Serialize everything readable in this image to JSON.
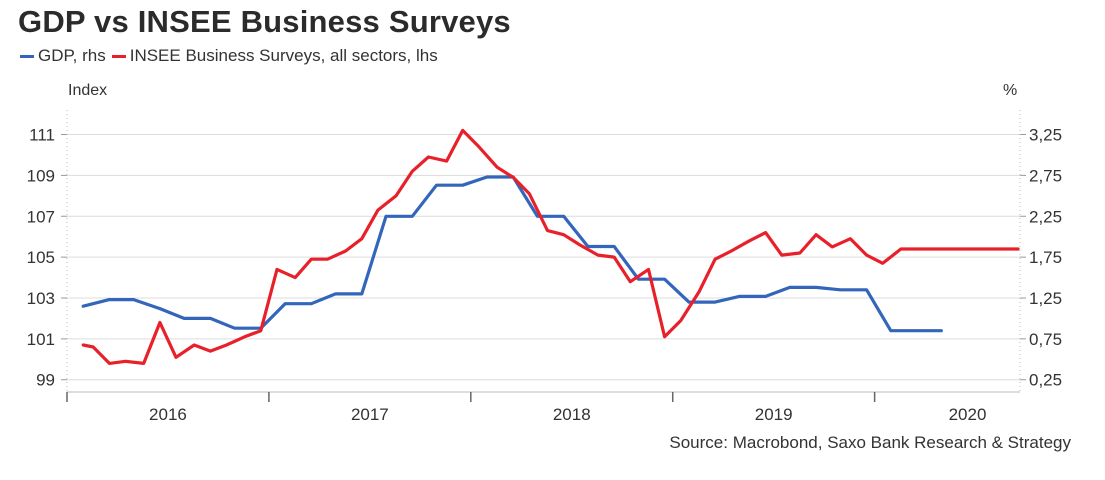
{
  "title": "GDP vs INSEE Business Surveys",
  "legend": [
    {
      "label": "GDP, rhs",
      "color": "#3366bb"
    },
    {
      "label": "INSEE Business Surveys, all sectors, lhs",
      "color": "#e8202a"
    }
  ],
  "source": "Source: Macrobond, Saxo Bank Research & Strategy",
  "chart_data": {
    "type": "line",
    "grid": true,
    "legend_position": "top-left",
    "left_axis": {
      "title": "Index",
      "ylim": [
        98.4,
        112.2
      ],
      "ticks": [
        {
          "v": 111,
          "label": "111"
        },
        {
          "v": 109,
          "label": "109"
        },
        {
          "v": 107,
          "label": "107"
        },
        {
          "v": 105,
          "label": "105"
        },
        {
          "v": 103,
          "label": "103"
        },
        {
          "v": 101,
          "label": "101"
        },
        {
          "v": 99,
          "label": "99"
        }
      ]
    },
    "right_axis": {
      "title": "%",
      "ylim": [
        0.1,
        3.55
      ],
      "ticks": [
        {
          "v": 3.25,
          "label": "3,25"
        },
        {
          "v": 2.75,
          "label": "2,75"
        },
        {
          "v": 2.25,
          "label": "2,25"
        },
        {
          "v": 1.75,
          "label": "1,75"
        },
        {
          "v": 1.25,
          "label": "1,25"
        },
        {
          "v": 0.75,
          "label": "0,75"
        },
        {
          "v": 0.25,
          "label": "0,25"
        }
      ]
    },
    "x_axis": {
      "xlim": [
        2015.5,
        2020.22
      ],
      "year_ticks": [
        2015.5,
        2016.5,
        2017.5,
        2018.5,
        2019.5
      ],
      "labels": [
        {
          "x": 2016.0,
          "label": "2016"
        },
        {
          "x": 2017.0,
          "label": "2017"
        },
        {
          "x": 2018.0,
          "label": "2018"
        },
        {
          "x": 2019.0,
          "label": "2019"
        },
        {
          "x": 2019.96,
          "label": "2020"
        }
      ]
    },
    "series": [
      {
        "name": "GDP, rhs",
        "axis": "right",
        "color": "#3366bb",
        "x": [
          2015.58,
          2015.71,
          2015.83,
          2015.96,
          2016.08,
          2016.21,
          2016.33,
          2016.46,
          2016.58,
          2016.71,
          2016.83,
          2016.96,
          2017.08,
          2017.21,
          2017.33,
          2017.46,
          2017.58,
          2017.71,
          2017.83,
          2017.96,
          2018.08,
          2018.21,
          2018.33,
          2018.46,
          2018.58,
          2018.71,
          2018.83,
          2018.96,
          2019.08,
          2019.21,
          2019.33,
          2019.46,
          2019.58,
          2019.71,
          2019.83
        ],
        "y": [
          1.15,
          1.23,
          1.23,
          1.12,
          1.0,
          1.0,
          0.88,
          0.88,
          1.18,
          1.18,
          1.3,
          1.3,
          2.25,
          2.25,
          2.63,
          2.63,
          2.73,
          2.73,
          2.25,
          2.25,
          1.88,
          1.88,
          1.48,
          1.48,
          1.2,
          1.2,
          1.27,
          1.27,
          1.38,
          1.38,
          1.35,
          1.35,
          0.85,
          0.85,
          0.85
        ]
      },
      {
        "name": "INSEE Business Surveys, all sectors, lhs",
        "axis": "left",
        "color": "#e8202a",
        "x": [
          2015.58,
          2015.63,
          2015.71,
          2015.79,
          2015.88,
          2015.96,
          2016.04,
          2016.13,
          2016.21,
          2016.29,
          2016.38,
          2016.46,
          2016.54,
          2016.63,
          2016.71,
          2016.79,
          2016.88,
          2016.96,
          2017.04,
          2017.13,
          2017.21,
          2017.29,
          2017.38,
          2017.46,
          2017.54,
          2017.63,
          2017.71,
          2017.79,
          2017.88,
          2017.96,
          2018.04,
          2018.13,
          2018.21,
          2018.29,
          2018.38,
          2018.46,
          2018.54,
          2018.63,
          2018.71,
          2018.79,
          2018.88,
          2018.96,
          2019.04,
          2019.13,
          2019.21,
          2019.29,
          2019.38,
          2019.46,
          2019.54,
          2019.63,
          2019.71,
          2019.79,
          2019.88,
          2019.96,
          2020.04,
          2020.13,
          2020.21
        ],
        "y": [
          100.7,
          100.6,
          99.8,
          99.9,
          99.8,
          101.8,
          100.1,
          100.7,
          100.4,
          100.7,
          101.1,
          101.4,
          104.4,
          104.0,
          104.9,
          104.9,
          105.3,
          105.9,
          107.3,
          108.0,
          109.2,
          109.9,
          109.7,
          111.2,
          110.4,
          109.4,
          108.9,
          108.1,
          106.3,
          106.1,
          105.6,
          105.1,
          105.0,
          103.8,
          104.4,
          101.1,
          101.9,
          103.3,
          104.9,
          105.3,
          105.8,
          106.2,
          105.1,
          105.2,
          106.1,
          105.5,
          105.9,
          105.1,
          104.7,
          105.4,
          105.4,
          105.4,
          105.4,
          105.4,
          105.4,
          105.4,
          105.4
        ]
      }
    ]
  }
}
